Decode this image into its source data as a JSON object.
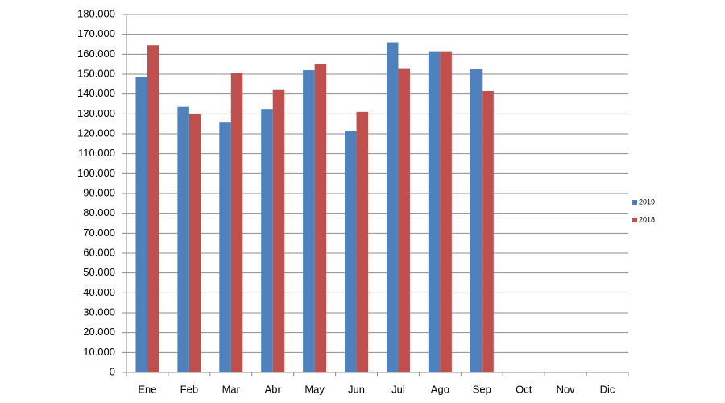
{
  "chart_data": {
    "type": "bar",
    "categories": [
      "Ene",
      "Feb",
      "Mar",
      "Abr",
      "May",
      "Jun",
      "Jul",
      "Ago",
      "Sep",
      "Oct",
      "Nov",
      "Dic"
    ],
    "series": [
      {
        "name": "2019",
        "color": "#4f81bd",
        "values": [
          148500,
          133500,
          126000,
          132500,
          152000,
          121500,
          166000,
          161500,
          152500,
          null,
          null,
          null
        ]
      },
      {
        "name": "2018",
        "color": "#c0504d",
        "values": [
          164500,
          130000,
          150500,
          142000,
          155000,
          131000,
          153000,
          161500,
          141500,
          null,
          null,
          null
        ]
      }
    ],
    "ylim": [
      0,
      180000
    ],
    "yticks": [
      0,
      {
        "value": 10000,
        "label": "10.000"
      },
      {
        "value": 20000,
        "label": "20.000"
      },
      {
        "value": 30000,
        "label": "30.000"
      },
      {
        "value": 40000,
        "label": "40.000"
      },
      {
        "value": 50000,
        "label": "50.000"
      },
      {
        "value": 60000,
        "label": "60.000"
      },
      {
        "value": 70000,
        "label": "70.000"
      },
      {
        "value": 80000,
        "label": "80.000"
      },
      {
        "value": 90000,
        "label": "90.000"
      },
      {
        "value": 100000,
        "label": "100.000"
      },
      {
        "value": 110000,
        "label": "110.000"
      },
      {
        "value": 120000,
        "label": "120.000"
      },
      {
        "value": 130000,
        "label": "130.000"
      },
      {
        "value": 140000,
        "label": "140.000"
      },
      {
        "value": 150000,
        "label": "150.000"
      },
      {
        "value": 160000,
        "label": "160.000"
      },
      {
        "value": 170000,
        "label": "170.000"
      },
      {
        "value": 180000,
        "label": "180.000"
      }
    ],
    "grid": true,
    "legend": "right"
  }
}
